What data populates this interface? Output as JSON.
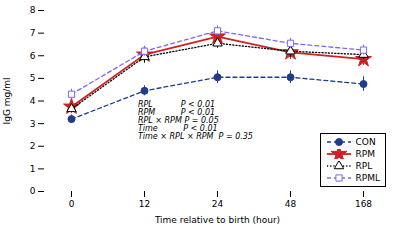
{
  "chart_data": {
    "type": "line",
    "categories": [
      "0",
      "12",
      "24",
      "48",
      "168"
    ],
    "xlabel": "Time relative to birth (hour)",
    "ylabel": "IgG mg/ml",
    "ylim": [
      0,
      8
    ],
    "yticks": [
      0,
      1,
      2,
      3,
      4,
      5,
      6,
      7,
      8
    ],
    "legend": "lower right",
    "annotations": [
      "RPL           P < 0.01\nRPM          P < 0.01\nRPL × RPM P = 0.05\nTime          P < 0.01\nTime × RPL × RPM  P = 0.35"
    ],
    "series": [
      {
        "name": "CON",
        "color": "#1f3d8c",
        "marker": "circle",
        "line_style": "dashed",
        "values": [
          3.2,
          4.45,
          5.05,
          5.05,
          4.75
        ],
        "errors": [
          0.18,
          0.22,
          0.28,
          0.28,
          0.32
        ]
      },
      {
        "name": "RPM",
        "color": "#cc2222",
        "marker": "star",
        "line_style": "solid",
        "values": [
          3.75,
          6.05,
          6.85,
          6.15,
          5.85
        ],
        "errors": [
          0.18,
          0.22,
          0.22,
          0.32,
          0.28
        ]
      },
      {
        "name": "RPL",
        "color": "#000000",
        "marker": "triangle-open",
        "line_style": "dotted",
        "values": [
          3.65,
          5.95,
          6.55,
          6.2,
          6.05
        ],
        "errors": [
          0.18,
          0.28,
          0.22,
          0.28,
          0.22
        ]
      },
      {
        "name": "RPML",
        "color": "#7B68EE",
        "marker": "square-open",
        "line_style": "dashed",
        "values": [
          4.3,
          6.2,
          7.1,
          6.55,
          6.25
        ],
        "errors": [
          0.22,
          0.22,
          0.22,
          0.22,
          0.22
        ]
      }
    ]
  }
}
